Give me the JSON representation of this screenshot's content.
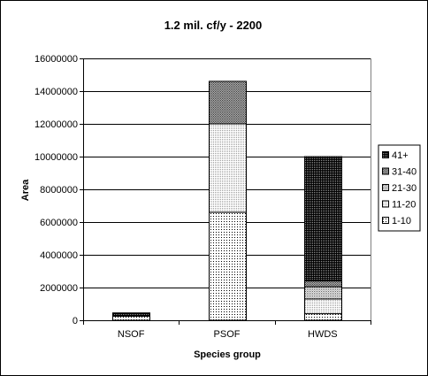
{
  "chart_data": {
    "type": "bar",
    "stacked": true,
    "title": "1.2 mil. cf/y - 2200",
    "xlabel": "Species group",
    "ylabel": "Area",
    "categories": [
      "NSOF",
      "PSOF",
      "HWDS"
    ],
    "ylim": [
      0,
      16000000
    ],
    "yticks": [
      0,
      2000000,
      4000000,
      6000000,
      8000000,
      10000000,
      12000000,
      14000000,
      16000000
    ],
    "ytick_labels": [
      "0",
      "2000000",
      "4000000",
      "6000000",
      "8000000",
      "10000000",
      "12000000",
      "14000000",
      "16000000"
    ],
    "grid": true,
    "legend_position": "right",
    "series": [
      {
        "name": "1-10",
        "values": [
          250000,
          6600000,
          400000
        ],
        "pattern": "dots-sparse",
        "color": "#ffffff"
      },
      {
        "name": "11-20",
        "values": [
          0,
          5400000,
          900000
        ],
        "pattern": "dots-light",
        "color": "#d8d8d8"
      },
      {
        "name": "21-30",
        "values": [
          0,
          0,
          750000
        ],
        "pattern": "dots-medium",
        "color": "#bcbcbc"
      },
      {
        "name": "31-40",
        "values": [
          50000,
          2600000,
          350000
        ],
        "pattern": "dots-dense",
        "color": "#8f8f8f"
      },
      {
        "name": "41+",
        "values": [
          150000,
          0,
          7600000
        ],
        "pattern": "dots-dark",
        "color": "#2a2a2a"
      }
    ]
  }
}
